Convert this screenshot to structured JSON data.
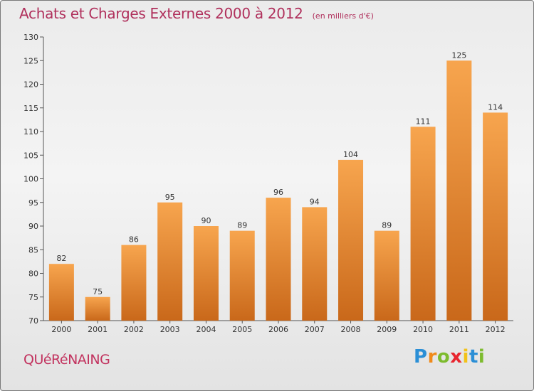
{
  "header": {
    "title": "Achats et Charges Externes 2000 à 2012",
    "subtitle": "(en milliers d'€)"
  },
  "footer": {
    "commune": "QUéRéNAING",
    "logo": {
      "letters": [
        "P",
        "r",
        "o",
        "x",
        "i",
        "t",
        "i"
      ],
      "colors": [
        "#2b8fd6",
        "#f08a1a",
        "#7dbb2e",
        "#e8262f",
        "#f2c21a",
        "#2b8fd6",
        "#7dbb2e"
      ]
    }
  },
  "colors": {
    "bar_top": "#f7a54e",
    "bar_bottom": "#c9681a",
    "title": "#b0305c"
  },
  "chart_data": {
    "type": "bar",
    "title": "Achats et Charges Externes 2000 à 2012",
    "subtitle": "(en milliers d'€)",
    "categories": [
      "2000",
      "2001",
      "2002",
      "2003",
      "2004",
      "2005",
      "2006",
      "2007",
      "2008",
      "2009",
      "2010",
      "2011",
      "2012"
    ],
    "values": [
      82,
      75,
      86,
      95,
      90,
      89,
      96,
      94,
      104,
      89,
      111,
      125,
      114
    ],
    "ylim": [
      70,
      130
    ],
    "yticks": [
      70,
      75,
      80,
      85,
      90,
      95,
      100,
      105,
      110,
      115,
      120,
      125,
      130
    ],
    "xlabel": "",
    "ylabel": "",
    "grid": false,
    "legend": "none"
  }
}
